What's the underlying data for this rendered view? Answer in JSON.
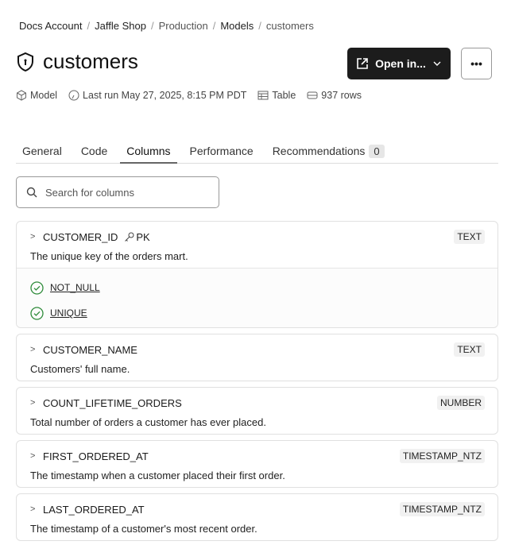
{
  "breadcrumb": [
    "Docs Account",
    "Jaffle Shop",
    "Production",
    "Models",
    "customers"
  ],
  "title": "customers",
  "open_button": "Open in...",
  "more_button": "•••",
  "meta": {
    "type": "Model",
    "last_run": "Last run May 27, 2025, 8:15 PM PDT",
    "materialization": "Table",
    "rows": "937 rows"
  },
  "tabs": [
    {
      "label": "General"
    },
    {
      "label": "Code"
    },
    {
      "label": "Columns",
      "active": true
    },
    {
      "label": "Performance"
    },
    {
      "label": "Recommendations",
      "badge": "0"
    }
  ],
  "search": {
    "placeholder": "Search for columns"
  },
  "colors": {
    "accent": "#1c1c1c",
    "test_pass": "#2e8b3a"
  },
  "columns": [
    {
      "name": "CUSTOMER_ID",
      "pk": "PK",
      "type": "TEXT",
      "description": "The unique key of the orders mart.",
      "tests": [
        "NOT_NULL",
        "UNIQUE"
      ]
    },
    {
      "name": "CUSTOMER_NAME",
      "type": "TEXT",
      "description": "Customers' full name."
    },
    {
      "name": "COUNT_LIFETIME_ORDERS",
      "type": "NUMBER",
      "description": "Total number of orders a customer has ever placed."
    },
    {
      "name": "FIRST_ORDERED_AT",
      "type": "TIMESTAMP_NTZ",
      "description": "The timestamp when a customer placed their first order."
    },
    {
      "name": "LAST_ORDERED_AT",
      "type": "TIMESTAMP_NTZ",
      "description": "The timestamp of a customer's most recent order."
    }
  ]
}
